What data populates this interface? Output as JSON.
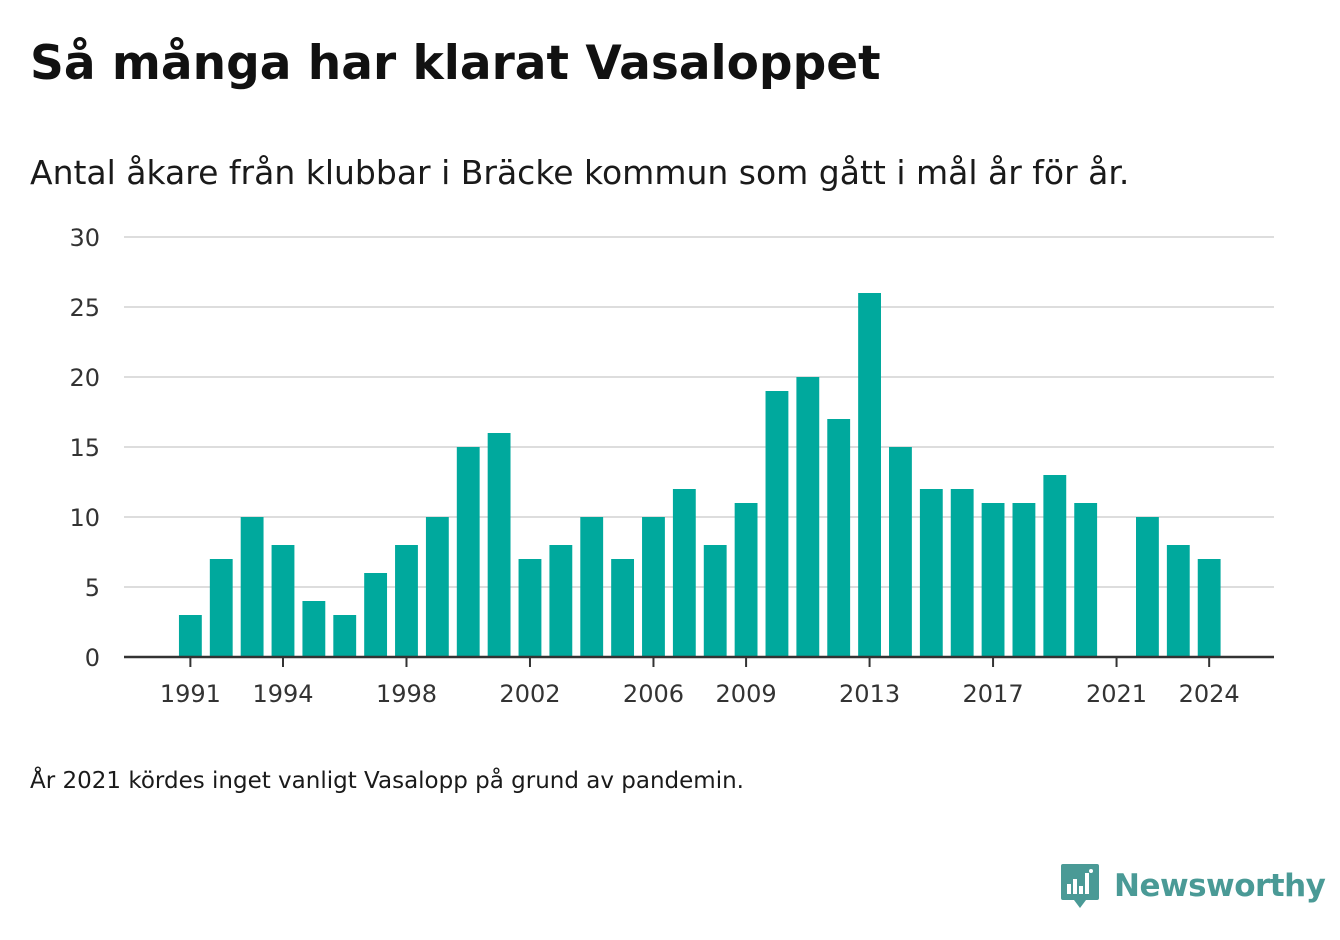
{
  "header": {
    "title": "Så många har klarat Vasaloppet",
    "subtitle": "Antal åkare från klubbar i Bräcke kommun som gått i mål år för år."
  },
  "footnote": "År 2021 kördes inget vanligt Vasalopp på grund av pandemin.",
  "brand": {
    "name": "Newsworthy",
    "icon": "newsworthy-logo-icon"
  },
  "colors": {
    "bar": "#00a99d",
    "grid": "#dddddd",
    "axis": "#333333",
    "brand": "#4a9a96"
  },
  "chart_data": {
    "type": "bar",
    "title": "Så många har klarat Vasaloppet",
    "subtitle": "Antal åkare från klubbar i Bräcke kommun som gått i mål år för år.",
    "xlabel": "",
    "ylabel": "",
    "ylim": [
      0,
      30
    ],
    "yticks": [
      0,
      5,
      10,
      15,
      20,
      25,
      30
    ],
    "xticks": [
      1991,
      1994,
      1998,
      2002,
      2006,
      2009,
      2013,
      2017,
      2021,
      2024
    ],
    "xlim": [
      1988.85,
      2026.1
    ],
    "grid": true,
    "legend": "none",
    "x": [
      1991,
      1992,
      1993,
      1994,
      1995,
      1996,
      1997,
      1998,
      1999,
      2000,
      2001,
      2002,
      2003,
      2004,
      2005,
      2006,
      2007,
      2008,
      2009,
      2010,
      2011,
      2012,
      2013,
      2014,
      2015,
      2016,
      2017,
      2018,
      2019,
      2020,
      2021,
      2022,
      2023,
      2024
    ],
    "values": [
      3,
      7,
      10,
      8,
      4,
      3,
      6,
      8,
      10,
      15,
      16,
      7,
      8,
      10,
      7,
      10,
      12,
      8,
      11,
      19,
      20,
      17,
      26,
      15,
      12,
      12,
      11,
      11,
      13,
      11,
      null,
      10,
      8,
      7
    ]
  }
}
